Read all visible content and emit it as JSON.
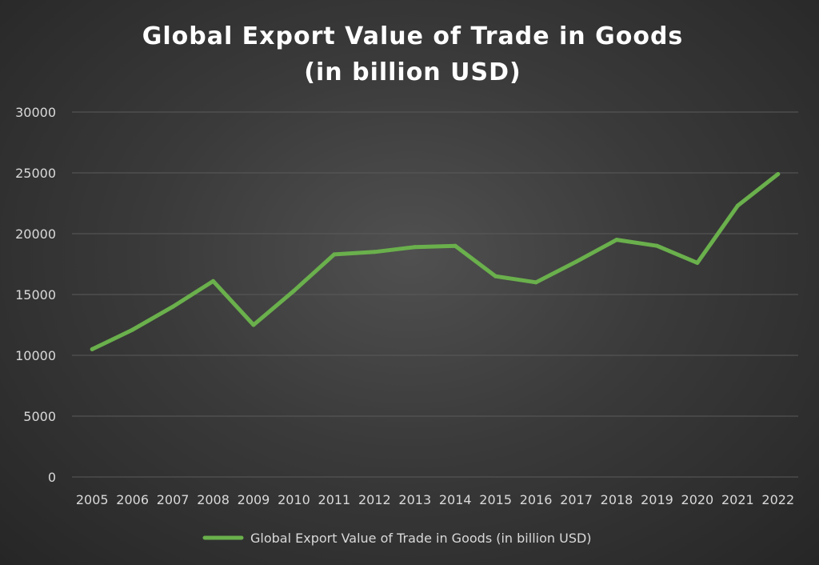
{
  "chart_data": {
    "type": "line",
    "title": [
      "Global Export Value of Trade in Goods",
      "(in billion USD)"
    ],
    "xlabel": "",
    "ylabel": "",
    "categories": [
      "2005",
      "2006",
      "2007",
      "2008",
      "2009",
      "2010",
      "2011",
      "2012",
      "2013",
      "2014",
      "2015",
      "2016",
      "2017",
      "2018",
      "2019",
      "2020",
      "2021",
      "2022"
    ],
    "series": [
      {
        "name": "Global Export Value of Trade in Goods (in billion USD)",
        "color": "#6ab04c",
        "values": [
          10500,
          12100,
          14000,
          16100,
          12500,
          15300,
          18300,
          18500,
          18900,
          19000,
          16500,
          16000,
          17700,
          19500,
          19000,
          17600,
          22300,
          24900
        ]
      }
    ],
    "ylim": [
      0,
      30000
    ],
    "yticks": [
      0,
      5000,
      10000,
      15000,
      20000,
      25000,
      30000
    ],
    "grid": true,
    "legend": "bottom",
    "background": "#3a3a3a",
    "text_color": "#d9d9d9"
  }
}
